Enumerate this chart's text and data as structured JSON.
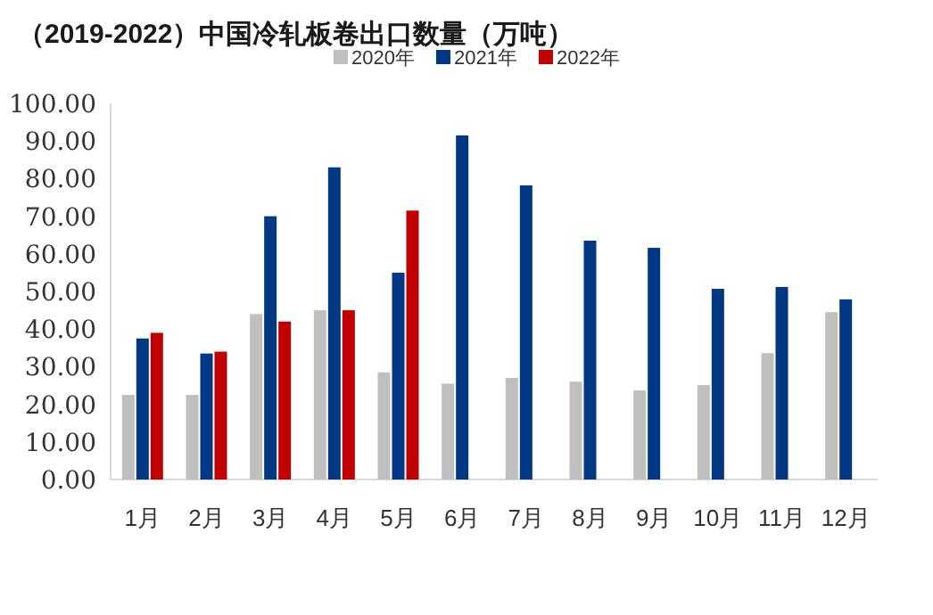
{
  "chart_data": {
    "type": "bar",
    "title": "（2019-2022）中国冷轧板卷出口数量（万吨）",
    "categories": [
      "1月",
      "2月",
      "3月",
      "4月",
      "5月",
      "6月",
      "7月",
      "8月",
      "9月",
      "10月",
      "11月",
      "12月"
    ],
    "series": [
      {
        "name": "2020年",
        "color": "#bfbfbf",
        "values": [
          22.5,
          22.5,
          44,
          45,
          28.5,
          25.5,
          27,
          26,
          23.7,
          25.1,
          33.6,
          44.5
        ]
      },
      {
        "name": "2021年",
        "color": "#003883",
        "values": [
          37.5,
          33.5,
          70,
          83,
          55,
          91.5,
          78.2,
          63.5,
          61.6,
          50.7,
          51.2,
          47.9
        ]
      },
      {
        "name": "2022年",
        "color": "#c00000",
        "values": [
          39,
          34,
          42,
          45,
          71.5,
          null,
          null,
          null,
          null,
          null,
          null,
          null
        ]
      }
    ],
    "ylim": [
      0,
      100
    ],
    "yticks": [
      {
        "value": 0,
        "label": "0.00"
      },
      {
        "value": 10,
        "label": "10.00"
      },
      {
        "value": 20,
        "label": "20.00"
      },
      {
        "value": 30,
        "label": "30.00"
      },
      {
        "value": 40,
        "label": "40.00"
      },
      {
        "value": 50,
        "label": "50.00"
      },
      {
        "value": 60,
        "label": "60.00"
      },
      {
        "value": 70,
        "label": "70.00"
      },
      {
        "value": 80,
        "label": "80.00"
      },
      {
        "value": 90,
        "label": "90.00"
      },
      {
        "value": 100,
        "label": "100.00"
      }
    ],
    "grid": false,
    "legend": "top"
  }
}
